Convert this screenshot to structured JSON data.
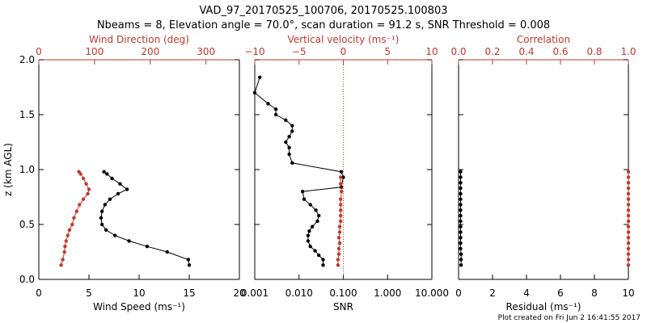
{
  "figure": {
    "title_line1": "VAD_97_20170525_100706, 20170525.100803",
    "title_line2": "Nbeams = 8, Elevation angle = 70.0°, scan duration = 91.2 s, SNR Threshold = 0.008",
    "footer": "Plot created on Fri Jun  2 16:41:55 2017"
  },
  "colors": {
    "black": "#000000",
    "red": "#c0392b"
  },
  "chart_data": [
    {
      "type": "line",
      "name": "wind-panel",
      "ylabel": "z (km AGL)",
      "ylim": [
        0,
        2
      ],
      "yticks": [
        "0.0",
        "0.5",
        "1.0",
        "1.5",
        "2.0"
      ],
      "xlabel_bottom": "Wind Speed (ms⁻¹)",
      "xlim_bottom": [
        0,
        20
      ],
      "xticks_bottom": [
        "0",
        "5",
        "10",
        "15",
        "20"
      ],
      "xlabel_top": "Wind Direction (deg)",
      "xlim_top": [
        0,
        360
      ],
      "xticks_top": [
        "0",
        "100",
        "200",
        "300"
      ],
      "series": [
        {
          "axis": "bottom",
          "color": "#000000",
          "x": [
            15.0,
            14.9,
            12.8,
            10.8,
            9.0,
            7.6,
            6.7,
            6.3,
            6.2,
            6.3,
            6.6,
            7.1,
            7.9,
            8.8,
            8.1,
            7.3,
            6.8,
            6.5
          ],
          "y": [
            0.13,
            0.18,
            0.25,
            0.3,
            0.35,
            0.4,
            0.45,
            0.5,
            0.56,
            0.62,
            0.68,
            0.73,
            0.78,
            0.82,
            0.87,
            0.92,
            0.96,
            0.98
          ]
        },
        {
          "axis": "top",
          "color": "#c0392b",
          "x": [
            40,
            43,
            46,
            47,
            49,
            52,
            55,
            60,
            63,
            68,
            73,
            80,
            88,
            90,
            85,
            80,
            75,
            72
          ],
          "y": [
            0.13,
            0.18,
            0.25,
            0.3,
            0.35,
            0.4,
            0.45,
            0.5,
            0.56,
            0.62,
            0.68,
            0.73,
            0.78,
            0.82,
            0.87,
            0.92,
            0.96,
            0.98
          ]
        }
      ]
    },
    {
      "type": "line",
      "name": "snr-panel",
      "xscale": "log",
      "xlabel_bottom": "SNR",
      "xlim_bottom": [
        0.001,
        10
      ],
      "xticks_bottom": [
        "0.001",
        "0.010",
        "0.100",
        "1.000",
        "10.000"
      ],
      "xlabel_top": "Vertical velocity (ms⁻¹)",
      "xlim_top": [
        -10,
        10
      ],
      "xticks_top": [
        "−10",
        "−5",
        "0",
        "5",
        "10"
      ],
      "zero_line_top": 0,
      "series": [
        {
          "axis": "bottom",
          "color": "#000000",
          "x": [
            0.035,
            0.035,
            0.028,
            0.023,
            0.018,
            0.016,
            0.016,
            0.017,
            0.02,
            0.026,
            0.028,
            0.024,
            0.018,
            0.013,
            0.012,
            0.09,
            0.1,
            0.09,
            0.007,
            0.006,
            0.006,
            0.005,
            0.006,
            0.007,
            0.007,
            0.005,
            0.003,
            0.003,
            0.002,
            0.001,
            0.0013
          ],
          "y": [
            0.13,
            0.18,
            0.22,
            0.26,
            0.3,
            0.35,
            0.4,
            0.44,
            0.48,
            0.53,
            0.58,
            0.63,
            0.68,
            0.73,
            0.8,
            0.84,
            0.93,
            0.98,
            1.06,
            1.14,
            1.2,
            1.25,
            1.3,
            1.35,
            1.4,
            1.45,
            1.5,
            1.55,
            1.6,
            1.7,
            1.84
          ]
        },
        {
          "axis": "top",
          "color": "#c0392b",
          "x": [
            -0.6,
            -0.6,
            -0.5,
            -0.5,
            -0.4,
            -0.5,
            -0.4,
            -0.4,
            -0.3,
            -0.3,
            -0.3,
            -0.3,
            -0.3,
            -0.2,
            -0.3,
            -0.3
          ],
          "y": [
            0.13,
            0.18,
            0.23,
            0.28,
            0.33,
            0.38,
            0.43,
            0.48,
            0.53,
            0.58,
            0.63,
            0.68,
            0.73,
            0.8,
            0.87,
            0.93
          ]
        }
      ]
    },
    {
      "type": "line",
      "name": "residual-panel",
      "xlabel_bottom": "Residual (ms⁻¹)",
      "xlim_bottom": [
        0,
        10
      ],
      "xticks_bottom": [
        "0",
        "2",
        "4",
        "6",
        "8",
        "10"
      ],
      "xlabel_top": "Correlation",
      "xlim_top": [
        0,
        1
      ],
      "xticks_top": [
        "0.0",
        "0.2",
        "0.4",
        "0.6",
        "0.8",
        "1.0"
      ],
      "series": [
        {
          "axis": "bottom",
          "color": "#000000",
          "x": [
            0.15,
            0.15,
            0.15,
            0.12,
            0.12,
            0.12,
            0.12,
            0.12,
            0.12,
            0.12,
            0.12,
            0.12,
            0.12,
            0.12,
            0.12,
            0.12,
            0.12,
            0.12
          ],
          "y": [
            0.13,
            0.18,
            0.23,
            0.28,
            0.33,
            0.38,
            0.43,
            0.48,
            0.53,
            0.58,
            0.63,
            0.68,
            0.73,
            0.78,
            0.83,
            0.88,
            0.93,
            0.98
          ]
        },
        {
          "axis": "top",
          "color": "#c0392b",
          "x": [
            1.0,
            1.0,
            1.0,
            1.0,
            1.0,
            1.0,
            1.0,
            1.0,
            1.0,
            1.0,
            1.0,
            1.0,
            1.0,
            1.0,
            1.0,
            1.0,
            1.0,
            1.0
          ],
          "y": [
            0.13,
            0.18,
            0.23,
            0.28,
            0.33,
            0.38,
            0.43,
            0.48,
            0.53,
            0.58,
            0.63,
            0.68,
            0.73,
            0.78,
            0.83,
            0.88,
            0.93,
            0.98
          ]
        }
      ]
    }
  ]
}
